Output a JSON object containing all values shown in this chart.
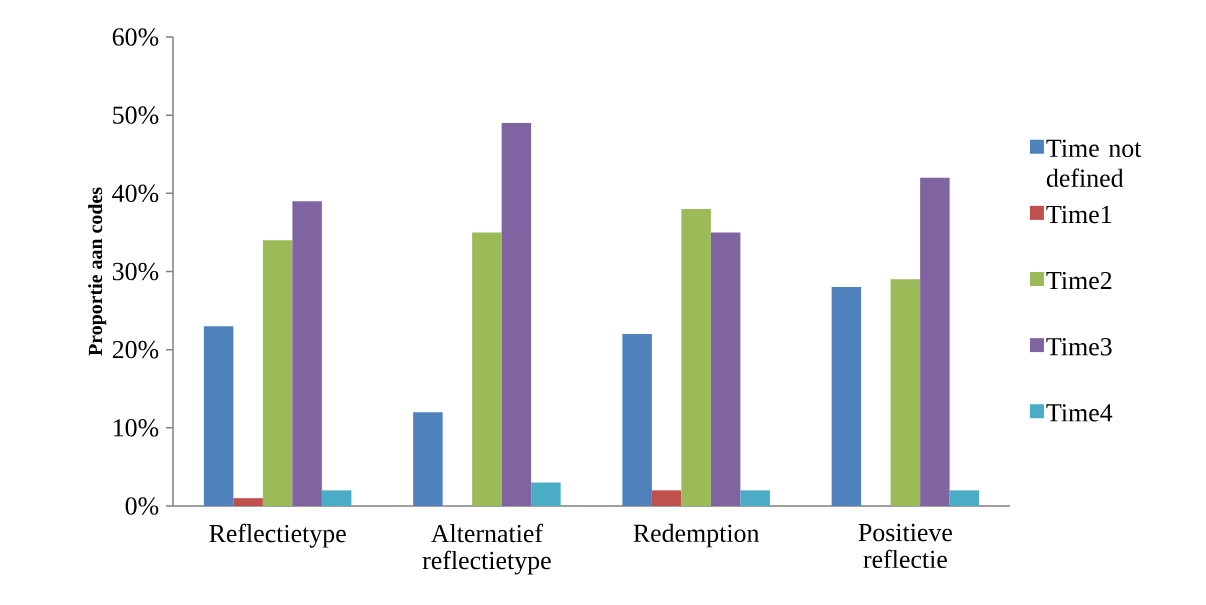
{
  "chart_data": {
    "type": "bar",
    "ylabel": "Proportie aan codes",
    "categories": [
      "Reflectietype",
      "Alternatief reflectietype",
      "Redemption",
      "Positieve reflectie"
    ],
    "series": [
      {
        "name": "Time not defined",
        "color": "#4f81bd",
        "values": [
          23,
          12,
          22,
          28
        ]
      },
      {
        "name": "Time1",
        "color": "#c0504d",
        "values": [
          1,
          0,
          2,
          0
        ]
      },
      {
        "name": "Time2",
        "color": "#9bbb59",
        "values": [
          34,
          35,
          38,
          29
        ]
      },
      {
        "name": "Time3",
        "color": "#8064a2",
        "values": [
          39,
          49,
          35,
          42
        ]
      },
      {
        "name": "Time4",
        "color": "#4bacc6",
        "values": [
          2,
          3,
          2,
          2
        ]
      }
    ],
    "ylim": [
      0,
      60
    ],
    "yticks": [
      {
        "value": 0,
        "label": "0%"
      },
      {
        "value": 10,
        "label": "10%"
      },
      {
        "value": 20,
        "label": "20%"
      },
      {
        "value": 30,
        "label": "30%"
      },
      {
        "value": 40,
        "label": "40%"
      },
      {
        "value": 50,
        "label": "50%"
      },
      {
        "value": 60,
        "label": "60%"
      }
    ],
    "legend": "right"
  }
}
